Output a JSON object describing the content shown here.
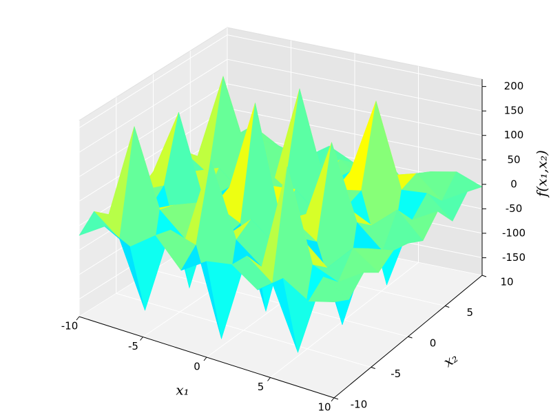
{
  "chart_data": {
    "type": "surface",
    "xlabel": "x₁",
    "ylabel": "x₂",
    "zlabel": "f(x₁,x₂)",
    "x": [
      -10,
      -8,
      -6,
      -4,
      -2,
      0,
      2,
      4,
      6,
      8,
      10
    ],
    "y": [
      -10,
      -8,
      -6,
      -4,
      -2,
      0,
      2,
      4,
      6,
      8,
      10
    ],
    "z": [
      [
        -20,
        15,
        -10,
        30,
        -25,
        10,
        20,
        -15,
        25,
        -5,
        10
      ],
      [
        10,
        -30,
        -160,
        20,
        5,
        -170,
        15,
        -25,
        -150,
        20,
        -10
      ],
      [
        -15,
        180,
        25,
        -20,
        160,
        10,
        -30,
        190,
        5,
        -15,
        20
      ],
      [
        25,
        -10,
        15,
        35,
        -20,
        30,
        -10,
        20,
        -25,
        30,
        -5
      ],
      [
        -5,
        20,
        -175,
        10,
        -15,
        -180,
        25,
        -10,
        -165,
        5,
        15
      ],
      [
        15,
        150,
        -20,
        25,
        210,
        -15,
        10,
        170,
        20,
        -25,
        5
      ],
      [
        -25,
        10,
        30,
        -15,
        20,
        25,
        -20,
        15,
        -10,
        35,
        -15
      ],
      [
        20,
        -15,
        -140,
        30,
        -5,
        -160,
        15,
        25,
        -155,
        -10,
        20
      ],
      [
        -10,
        165,
        10,
        -25,
        175,
        -10,
        30,
        185,
        15,
        20,
        -25
      ],
      [
        30,
        -20,
        25,
        15,
        -30,
        20,
        -15,
        10,
        25,
        -20,
        10
      ],
      [
        -15,
        25,
        -5,
        -20,
        15,
        -10,
        25,
        -30,
        5,
        15,
        -5
      ]
    ],
    "xlim": [
      -10,
      10
    ],
    "ylim": [
      -10,
      10
    ],
    "zlim": [
      -186,
      215
    ],
    "xticks": [
      -10,
      -5,
      0,
      5,
      10
    ],
    "yticks": [
      -10,
      -5,
      0,
      5,
      10
    ],
    "zticks": [
      -150,
      -100,
      -50,
      0,
      50,
      100,
      150,
      200
    ],
    "colormap": "jet",
    "grid": true
  }
}
